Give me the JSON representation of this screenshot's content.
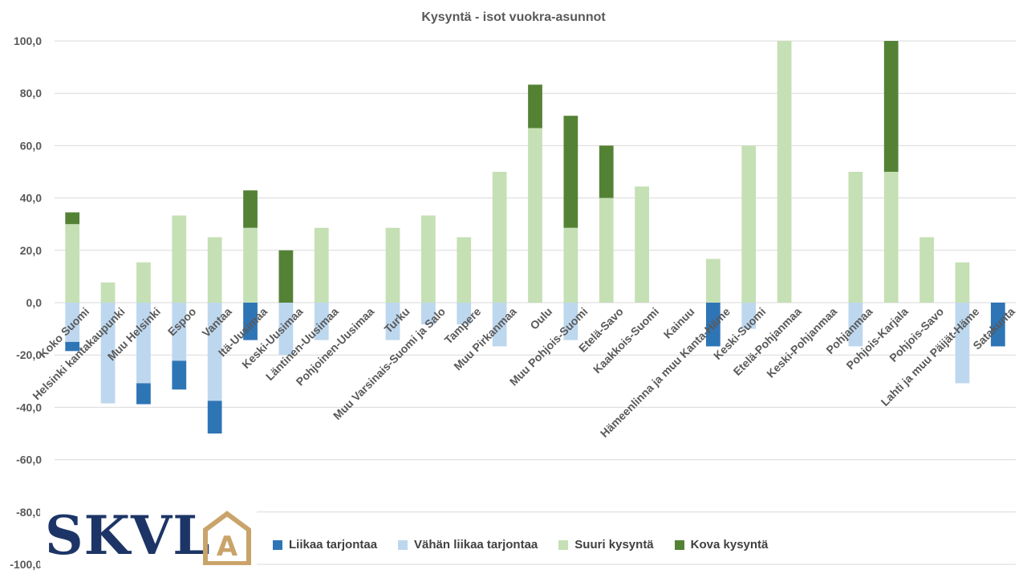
{
  "chart_data": {
    "type": "bar",
    "stacked": true,
    "title": "Kysyntä - isot vuokra-asunnot",
    "ylim": [
      -100,
      100
    ],
    "yticks": [
      "100,0",
      "80,0",
      "60,0",
      "40,0",
      "20,0",
      "0,0",
      "-20,0",
      "-40,0",
      "-60,0",
      "-80,0",
      "-100,0"
    ],
    "ytick_values": [
      100,
      80,
      60,
      40,
      20,
      0,
      -20,
      -40,
      -60,
      -80,
      -100
    ],
    "legend_position": "bottom",
    "categories": [
      "Koko Suomi",
      "Helsinki kantakaupunki",
      "Muu Helsinki",
      "Espoo",
      "Vantaa",
      "Itä-Uusimaa",
      "Keski-Uusimaa",
      "Läntinen-Uusimaa",
      "Pohjoinen-Uusimaa",
      "Turku",
      "Muu Varsinais-Suomi ja Salo",
      "Tampere",
      "Muu Pirkanmaa",
      "Oulu",
      "Muu Pohjois-Suomi",
      "Etelä-Savo",
      "Kaakkois-Suomi",
      "Kainuu",
      "Hämeenlinna ja muu Kanta-Häme",
      "Keski-Suomi",
      "Etelä-Pohjanmaa",
      "Keski-Pohjanmaa",
      "Pohjanmaa",
      "Pohjois-Karjala",
      "Pohjois-Savo",
      "Lahti ja muu Päijät-Häme",
      "Satakunta"
    ],
    "series": [
      {
        "name": "Liikaa tarjontaa",
        "color": "#2e75b6",
        "sign": "negative",
        "values": [
          -3.5,
          0,
          -8,
          -11,
          -12.5,
          -14.3,
          0,
          0,
          0,
          0,
          0,
          0,
          0,
          0,
          0,
          0,
          0,
          0,
          -16.7,
          0,
          0,
          0,
          0,
          0,
          0,
          0,
          -16.7
        ]
      },
      {
        "name": "Vähän liikaa tarjontaa",
        "color": "#bdd7ee",
        "sign": "negative",
        "values": [
          -15,
          -38.5,
          -30.8,
          -22.2,
          -37.5,
          0,
          -20,
          -14.3,
          0,
          -14.3,
          -8.3,
          -8.3,
          -16.7,
          0,
          -14.3,
          0,
          0,
          0,
          0,
          -10,
          0,
          0,
          -16.7,
          0,
          0,
          -30.8,
          0
        ]
      },
      {
        "name": "Suuri kysyntä",
        "color": "#c5e0b4",
        "sign": "positive",
        "values": [
          30,
          7.7,
          15.4,
          33.3,
          25,
          28.6,
          0,
          28.6,
          0,
          28.6,
          33.3,
          25,
          50,
          66.7,
          28.6,
          40,
          44.4,
          0,
          16.7,
          60,
          100,
          0,
          50,
          50,
          25,
          15.4,
          0
        ]
      },
      {
        "name": "Kova kysyntä",
        "color": "#548235",
        "sign": "positive",
        "values": [
          4.5,
          0,
          0,
          0,
          0,
          14.3,
          20,
          0,
          0,
          0,
          0,
          0,
          0,
          16.6,
          42.8,
          20,
          0,
          0,
          0,
          0,
          0,
          0,
          0,
          50,
          0,
          0,
          0
        ]
      }
    ]
  },
  "logo": {
    "text": "SKVL",
    "mark": "A"
  }
}
